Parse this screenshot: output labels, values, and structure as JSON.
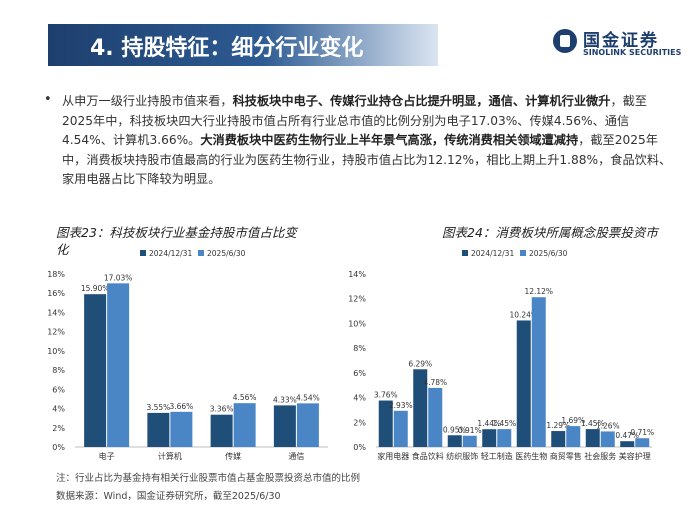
{
  "header": {
    "title": "4. 持股特征：细分行业变化",
    "logo_cn": "国金证券",
    "logo_en": "SINOLINK SECURITIES"
  },
  "paragraph": {
    "bullet": "•",
    "segments": [
      {
        "text": "从申万一级行业持股市值来看，",
        "bold": false
      },
      {
        "text": "科技板块中电子、传媒行业持仓占比提升明显，通信、计算机行业微升",
        "bold": true
      },
      {
        "text": "，截至2025年中，科技板块四大行业持股市值占所有行业总市值的比例分别为电子17.03%、传媒4.56%、通信4.54%、计算机3.66%。",
        "bold": false
      },
      {
        "text": "大消费板块中医药生物行业上半年景气高涨，传统消费相关领域遭减持",
        "bold": true
      },
      {
        "text": "，截至2025年中，消费板块持股市值最高的行业为医药生物行业，持股市值占比为12.12%，相比上期上升1.88%，食品饮料、家用电器占比下降较为明显。",
        "bold": false
      }
    ]
  },
  "colors": {
    "series_2024": "#1f4e79",
    "series_2025": "#4a86c5"
  },
  "chart_data": [
    {
      "type": "bar",
      "title": "图表23：科技板块行业基金持股市值占比变化",
      "categories": [
        "电子",
        "计算机",
        "传媒",
        "通信"
      ],
      "series": [
        {
          "name": "2024/12/31",
          "values": [
            15.9,
            3.55,
            3.36,
            4.33
          ],
          "labels": [
            "15.90%",
            "3.55%",
            "3.36%",
            "4.33%"
          ]
        },
        {
          "name": "2025/6/30",
          "values": [
            17.03,
            3.66,
            4.56,
            4.54
          ],
          "labels": [
            "17.03%",
            "3.66%",
            "4.56%",
            "4.54%"
          ]
        }
      ],
      "ylim": [
        0,
        18
      ],
      "yticks": [
        "0%",
        "2%",
        "4%",
        "6%",
        "8%",
        "10%",
        "12%",
        "14%",
        "16%",
        "18%"
      ],
      "legend": "top",
      "grid": false
    },
    {
      "type": "bar",
      "title": "图表24：消费板块所属概念股票投资市",
      "categories": [
        "家用电器",
        "食品饮料",
        "纺织服饰",
        "轻工制造",
        "医药生物",
        "商贸零售",
        "社会服务",
        "美容护理"
      ],
      "series": [
        {
          "name": "2024/12/31",
          "values": [
            3.76,
            6.29,
            0.95,
            1.44,
            10.24,
            1.29,
            1.45,
            0.47
          ],
          "labels": [
            "3.76%",
            "6.29%",
            "0.95%",
            "1.44%",
            "10.24%",
            "1.29%",
            "1.45%",
            "0.47%"
          ]
        },
        {
          "name": "2025/6/30",
          "values": [
            2.93,
            4.78,
            0.91,
            1.45,
            12.12,
            1.69,
            1.26,
            0.71
          ],
          "labels": [
            "2.93%",
            "4.78%",
            "0.91%",
            "1.45%",
            "12.12%",
            "1.69%",
            "1.26%",
            "0.71%"
          ]
        }
      ],
      "ylim": [
        0,
        14
      ],
      "yticks": [
        "0%",
        "2%",
        "4%",
        "6%",
        "8%",
        "10%",
        "12%",
        "14%"
      ],
      "legend": "top",
      "grid": false
    }
  ],
  "footer": {
    "note": "注：行业占比为基金持有相关行业股票市值占基金股票投资总市值的比例",
    "source": "数据来源：Wind，国金证券研究所，截至2025/6/30"
  }
}
